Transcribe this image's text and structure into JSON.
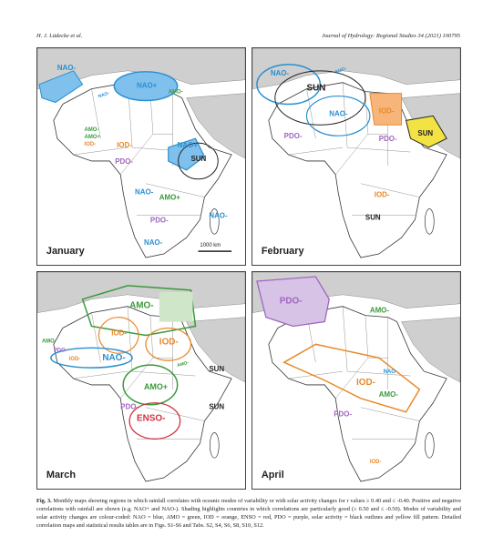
{
  "header": {
    "author": "H. J. Lüdecke et al.",
    "journal": "Journal of Hydrology: Regional Studies 34 (2021) 100795"
  },
  "panels": [
    {
      "month": "January",
      "scale": "1000 km",
      "labels": [
        "NAO-",
        "NAO+",
        "AMO-",
        "AMO-",
        "NAO+",
        "AMO+",
        "IOD-",
        "IOD-",
        "PDO-",
        "NAO-",
        "SUN",
        "NAO-",
        "AMO+",
        "PDO-",
        "NAO-",
        "NAO-"
      ]
    },
    {
      "month": "February",
      "labels": [
        "NAO-",
        "AMO-",
        "SUN",
        "NAO-",
        "IOD-",
        "PDO-",
        "SUN",
        "PDO-",
        "IOD-",
        "SUN"
      ]
    },
    {
      "month": "March",
      "labels": [
        "AMO-",
        "IOD-",
        "IOD-",
        "AMO-",
        "PDO-",
        "IOD-",
        "NAO-",
        "AMO-",
        "SUN",
        "AMO+",
        "PDO-",
        "ENSO-",
        "SUN"
      ]
    },
    {
      "month": "April",
      "labels": [
        "PDO-",
        "AMO-",
        "NAO-",
        "IOD-",
        "AMO-",
        "PDO-",
        "IOD-"
      ]
    }
  ],
  "caption": {
    "label": "Fig. 3.",
    "text": "Monthly maps showing regions in which rainfall correlates with oceanic modes of variability or with solar activity changes for r values ≥ 0.40 and ≤ -0.40. Positive and negative correlations with rainfall are shown (e.g. NAO+ and NAO-). Shading highlights countries in which correlations are particularly good (≥ 0.50 and ≤ -0.50). Modes of variability and solar activity changes are colour-coded: NAO = blue, AMO = green, IOD = orange, ENSO = red, PDO = purple, solar activity = black outlines and yellow fill pattern. Detailed correlation maps and statistical results tables are in Figs. S1-S6 and Tabs. S2, S4, S6, S8, S10, S12."
  }
}
